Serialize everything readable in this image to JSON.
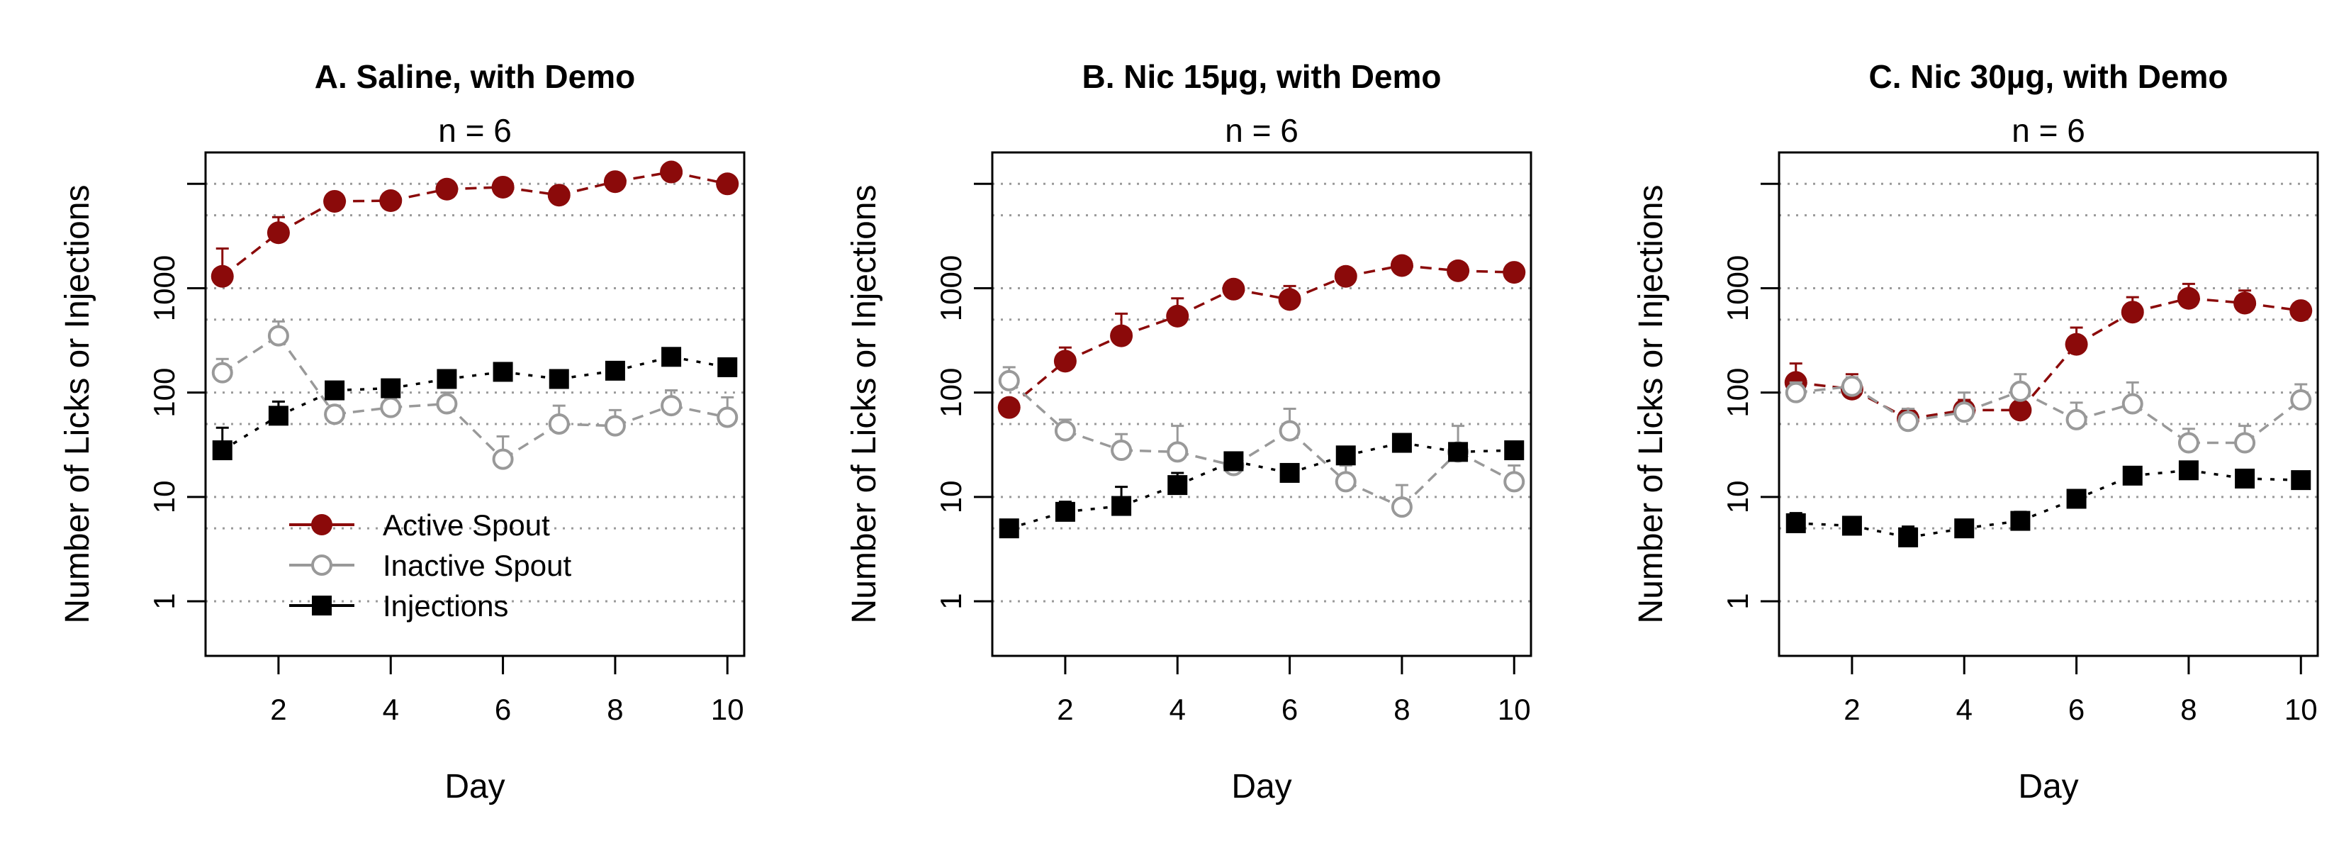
{
  "colors": {
    "active": "#8b0a0a",
    "inactive": "#999999",
    "injections": "#000000",
    "grid": "#9a9a9a"
  },
  "legend": {
    "placement": "bottom-left of first panel",
    "entries": [
      {
        "series": "active",
        "label": "Active Spout"
      },
      {
        "series": "inactive",
        "label": "Inactive Spout"
      },
      {
        "series": "injections",
        "label": "Injections"
      }
    ]
  },
  "chart_data": [
    {
      "type": "line",
      "title": "A. Saline, with Demo",
      "subtitle": "n = 6",
      "xlabel": "Day",
      "ylabel": "Number of Licks or Injections",
      "y_scale": "log",
      "ylim": [
        0.3,
        20000
      ],
      "xlim": [
        0.7,
        10.3
      ],
      "xticks": [
        2,
        4,
        6,
        8,
        10
      ],
      "yticks": [
        1,
        10,
        100,
        1000,
        10000
      ],
      "ytick_labels": [
        "1",
        "10",
        "100",
        "1000",
        ""
      ],
      "grid_lines": [
        1,
        5,
        10,
        50,
        100,
        500,
        1000,
        5000,
        10000
      ],
      "x": [
        1,
        2,
        3,
        4,
        5,
        6,
        7,
        8,
        9,
        10
      ],
      "series": [
        {
          "id": "active",
          "name": "Active Spout",
          "marker": "filled-circle",
          "values": [
            1300,
            3400,
            6800,
            6900,
            8900,
            9300,
            7800,
            10500,
            13000,
            10000
          ],
          "err": [
            2400,
            4800,
            null,
            null,
            null,
            null,
            null,
            null,
            null,
            null
          ]
        },
        {
          "id": "inactive",
          "name": "Inactive Spout",
          "marker": "open-circle",
          "values": [
            155,
            350,
            62,
            72,
            78,
            23,
            50,
            48,
            75,
            58
          ],
          "err": [
            210,
            480,
            75,
            88,
            100,
            38,
            75,
            68,
            105,
            90
          ]
        },
        {
          "id": "injections",
          "name": "Injections",
          "marker": "filled-square",
          "values": [
            28,
            60,
            105,
            110,
            135,
            158,
            135,
            162,
            220,
            175
          ],
          "err": [
            46,
            82,
            120,
            120,
            150,
            170,
            150,
            175,
            250,
            185
          ]
        }
      ]
    },
    {
      "type": "line",
      "title": "B. Nic 15µg, with Demo",
      "subtitle": "n = 6",
      "xlabel": "Day",
      "ylabel": "Number of Licks or Injections",
      "y_scale": "log",
      "ylim": [
        0.3,
        20000
      ],
      "xlim": [
        0.7,
        10.3
      ],
      "xticks": [
        2,
        4,
        6,
        8,
        10
      ],
      "yticks": [
        1,
        10,
        100,
        1000,
        10000
      ],
      "ytick_labels": [
        "1",
        "10",
        "100",
        "1000",
        ""
      ],
      "grid_lines": [
        1,
        5,
        10,
        50,
        100,
        500,
        1000,
        5000,
        10000
      ],
      "x": [
        1,
        2,
        3,
        4,
        5,
        6,
        7,
        8,
        9,
        10
      ],
      "series": [
        {
          "id": "active",
          "name": "Active Spout",
          "marker": "filled-circle",
          "values": [
            72,
            200,
            350,
            540,
            980,
            780,
            1300,
            1650,
            1470,
            1420
          ],
          "err": [
            85,
            270,
            570,
            800,
            1100,
            1050,
            1550,
            1850,
            1650,
            1550
          ]
        },
        {
          "id": "inactive",
          "name": "Inactive Spout",
          "marker": "open-circle",
          "values": [
            130,
            43,
            28,
            27,
            20,
            43,
            14,
            8,
            27,
            14
          ],
          "err": [
            175,
            55,
            40,
            48,
            26,
            70,
            20,
            13,
            48,
            20
          ]
        },
        {
          "id": "injections",
          "name": "Injections",
          "marker": "filled-square",
          "values": [
            5,
            7.2,
            8.2,
            13,
            22,
            17,
            25,
            33,
            27,
            28
          ],
          "err": [
            5.8,
            9,
            12.5,
            17,
            25,
            20,
            28,
            37,
            31,
            31
          ]
        }
      ]
    },
    {
      "type": "line",
      "title": "C. Nic 30µg, with Demo",
      "subtitle": "n = 6",
      "xlabel": "Day",
      "ylabel": "Number of Licks or Injections",
      "y_scale": "log",
      "ylim": [
        0.3,
        20000
      ],
      "xlim": [
        0.7,
        10.3
      ],
      "xticks": [
        2,
        4,
        6,
        8,
        10
      ],
      "yticks": [
        1,
        10,
        100,
        1000,
        10000
      ],
      "ytick_labels": [
        "1",
        "10",
        "100",
        "1000",
        ""
      ],
      "grid_lines": [
        1,
        5,
        10,
        50,
        100,
        500,
        1000,
        5000,
        10000
      ],
      "x": [
        1,
        2,
        3,
        4,
        5,
        6,
        7,
        8,
        9,
        10
      ],
      "series": [
        {
          "id": "active",
          "name": "Active Spout",
          "marker": "filled-circle",
          "values": [
            125,
            108,
            56,
            68,
            68,
            290,
            590,
            800,
            720,
            610
          ],
          "err": [
            190,
            150,
            70,
            85,
            90,
            420,
            820,
            1100,
            950,
            720
          ]
        },
        {
          "id": "inactive",
          "name": "Inactive Spout",
          "marker": "open-circle",
          "values": [
            100,
            115,
            53,
            65,
            103,
            55,
            78,
            33,
            33,
            85
          ],
          "err": [
            125,
            140,
            70,
            100,
            150,
            80,
            125,
            45,
            48,
            120
          ]
        },
        {
          "id": "injections",
          "name": "Injections",
          "marker": "filled-square",
          "values": [
            5.6,
            5.3,
            4.1,
            5.0,
            5.9,
            9.6,
            16,
            18,
            15,
            14.5
          ],
          "err": [
            7,
            6,
            5.2,
            5.8,
            7.2,
            10.5,
            19,
            21,
            18,
            16
          ]
        }
      ]
    }
  ]
}
